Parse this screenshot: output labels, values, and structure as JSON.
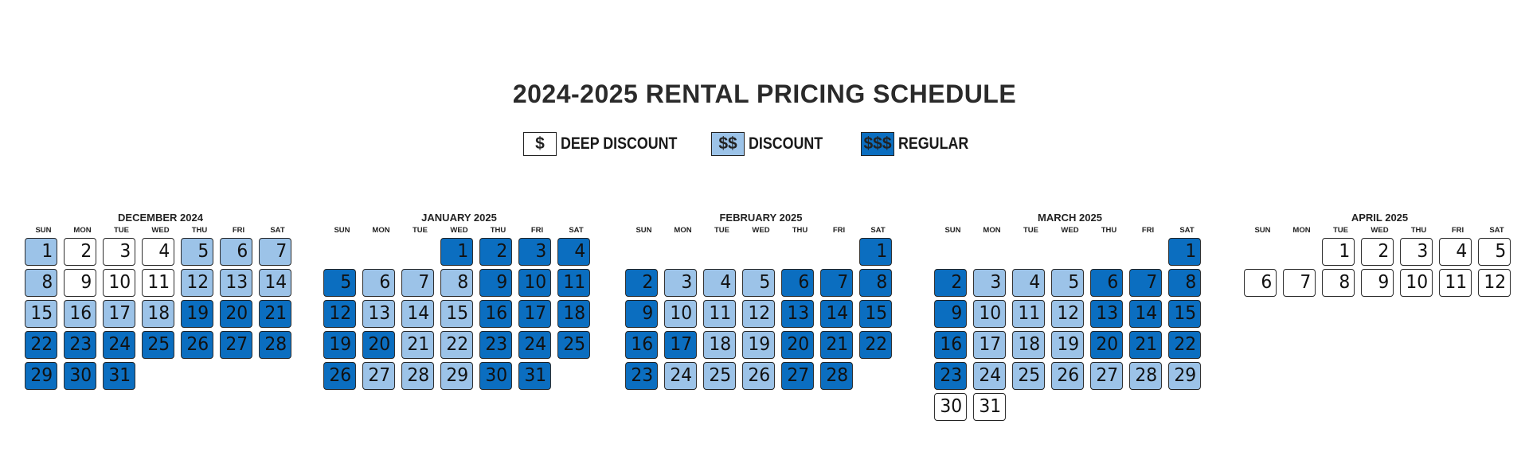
{
  "title": "2024-2025 RENTAL PRICING SCHEDULE",
  "legend": [
    {
      "symbol": "$",
      "label": "DEEP DISCOUNT",
      "color": "#ffffff"
    },
    {
      "symbol": "$$",
      "label": "DISCOUNT",
      "color": "#9cc3e8"
    },
    {
      "symbol": "$$$",
      "label": "REGULAR",
      "color": "#0b6ec0"
    }
  ],
  "weekdays": [
    "SUN",
    "MON",
    "TUE",
    "WED",
    "THU",
    "FRI",
    "SAT"
  ],
  "months": [
    {
      "name": "DECEMBER 2024",
      "first_weekday": "SUN",
      "days": [
        "$$",
        "$",
        "$",
        "$",
        "$$",
        "$$",
        "$$",
        "$$",
        "$",
        "$",
        "$",
        "$$",
        "$$",
        "$$",
        "$$",
        "$$",
        "$$",
        "$$",
        "$$$",
        "$$$",
        "$$$",
        "$$$",
        "$$$",
        "$$$",
        "$$$",
        "$$$",
        "$$$",
        "$$$",
        "$$$",
        "$$$",
        "$$$"
      ]
    },
    {
      "name": "JANUARY 2025",
      "first_weekday": "WED",
      "days": [
        "$$$",
        "$$$",
        "$$$",
        "$$$",
        "$$$",
        "$$",
        "$$",
        "$$",
        "$$$",
        "$$$",
        "$$$",
        "$$$",
        "$$",
        "$$",
        "$$",
        "$$$",
        "$$$",
        "$$$",
        "$$$",
        "$$$",
        "$$",
        "$$",
        "$$$",
        "$$$",
        "$$$",
        "$$$",
        "$$",
        "$$",
        "$$",
        "$$$",
        "$$$"
      ]
    },
    {
      "name": "FEBRUARY 2025",
      "first_weekday": "SAT",
      "days": [
        "$$$",
        "$$$",
        "$$",
        "$$",
        "$$",
        "$$$",
        "$$$",
        "$$$",
        "$$$",
        "$$",
        "$$",
        "$$",
        "$$$",
        "$$$",
        "$$$",
        "$$$",
        "$$$",
        "$$",
        "$$",
        "$$$",
        "$$$",
        "$$$",
        "$$$",
        "$$",
        "$$",
        "$$",
        "$$$",
        "$$$"
      ]
    },
    {
      "name": "MARCH 2025",
      "first_weekday": "SAT",
      "days": [
        "$$$",
        "$$$",
        "$$",
        "$$",
        "$$",
        "$$$",
        "$$$",
        "$$$",
        "$$$",
        "$$",
        "$$",
        "$$",
        "$$$",
        "$$$",
        "$$$",
        "$$$",
        "$$",
        "$$",
        "$$",
        "$$$",
        "$$$",
        "$$$",
        "$$$",
        "$$",
        "$$",
        "$$",
        "$$",
        "$$",
        "$$",
        "$",
        "$"
      ]
    },
    {
      "name": "APRIL 2025",
      "first_weekday": "TUE",
      "days": [
        "$",
        "$",
        "$",
        "$",
        "$",
        "$",
        "$",
        "$",
        "$",
        "$",
        "$",
        "$"
      ]
    }
  ]
}
